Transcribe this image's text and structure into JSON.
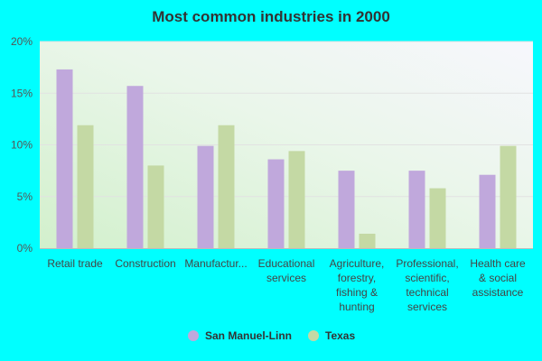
{
  "chart_data": {
    "type": "bar",
    "title": "Most common industries in 2000",
    "categories": [
      [
        "Retail trade"
      ],
      [
        "Construction"
      ],
      [
        "Manufactur..."
      ],
      [
        "Educational",
        "services"
      ],
      [
        "Agriculture,",
        "forestry,",
        "fishing &",
        "hunting"
      ],
      [
        "Professional,",
        "scientific,",
        "technical",
        "services"
      ],
      [
        "Health care",
        "& social",
        "assistance"
      ]
    ],
    "series": [
      {
        "name": "San Manuel-Linn",
        "color": "#c0a8dc",
        "values": [
          17.3,
          15.7,
          9.9,
          8.6,
          7.5,
          7.5,
          7.1
        ]
      },
      {
        "name": "Texas",
        "color": "#c4d9a4",
        "values": [
          11.9,
          8.0,
          11.9,
          9.4,
          1.4,
          5.8,
          9.9
        ]
      }
    ],
    "yticks": [
      "0%",
      "5%",
      "10%",
      "15%",
      "20%"
    ],
    "ylim": [
      0,
      20
    ],
    "grid": true,
    "legend_position": "bottom-center"
  }
}
